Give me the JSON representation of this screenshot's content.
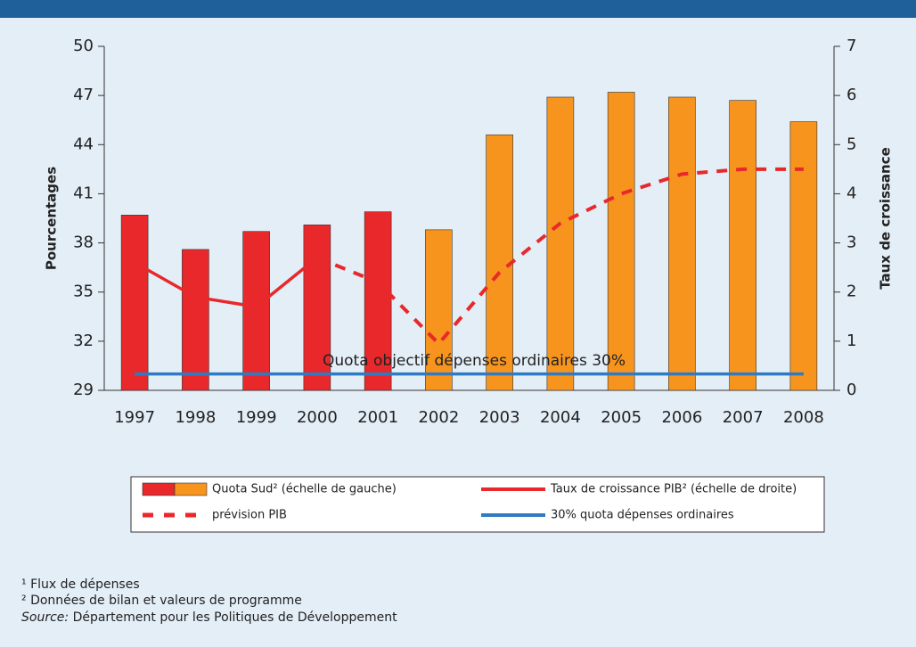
{
  "chart_data": {
    "type": "bar",
    "categories": [
      "1997",
      "1998",
      "1999",
      "2000",
      "2001",
      "2002",
      "2003",
      "2004",
      "2005",
      "2006",
      "2007",
      "2008"
    ],
    "series": [
      {
        "name": "Quota Sud² (échelle de gauche)",
        "type": "bar",
        "colors": [
          "#e8282b",
          "#e8282b",
          "#e8282b",
          "#e8282b",
          "#e8282b",
          "#f7941d",
          "#f7941d",
          "#f7941d",
          "#f7941d",
          "#f7941d",
          "#f7941d",
          "#f7941d"
        ],
        "values": [
          39.7,
          37.6,
          38.7,
          39.1,
          39.9,
          38.8,
          44.6,
          46.9,
          47.2,
          46.9,
          46.7,
          45.4
        ]
      },
      {
        "name": "Taux de croissance PIB² (échelle de droite)",
        "type": "line",
        "axis": "y2",
        "color": "#e8282b",
        "dashed": false,
        "values": [
          2.6,
          1.9,
          1.7,
          2.7,
          null,
          null,
          null,
          null,
          null,
          null,
          null,
          null
        ]
      },
      {
        "name": "prévision PIB",
        "type": "line",
        "axis": "y2",
        "color": "#e8282b",
        "dashed": true,
        "values": [
          null,
          null,
          null,
          2.7,
          2.2,
          0.95,
          2.4,
          3.4,
          4.0,
          4.4,
          4.5,
          4.5
        ]
      },
      {
        "name": "30% quota dépenses ordinaires",
        "type": "line",
        "color": "#2e7bc4",
        "dashed": false,
        "values": [
          30,
          30,
          30,
          30,
          30,
          30,
          30,
          30,
          30,
          30,
          30,
          30
        ]
      }
    ],
    "annotation": "Quota objectif dépenses ordinaires 30%",
    "ylabel": "Pourcentages",
    "y2label": "Taux de croissance",
    "ylim": [
      29,
      50
    ],
    "yticks": [
      29,
      32,
      35,
      38,
      41,
      44,
      47,
      50
    ],
    "y2lim": [
      0,
      7
    ],
    "y2ticks": [
      0,
      1,
      2,
      3,
      4,
      5,
      6,
      7
    ]
  },
  "footnotes": [
    "¹ Flux de dépenses",
    "² Données de bilan et valeurs de programme"
  ],
  "source": {
    "label": "Source:",
    "text": "Département pour les Politiques de Développement"
  }
}
